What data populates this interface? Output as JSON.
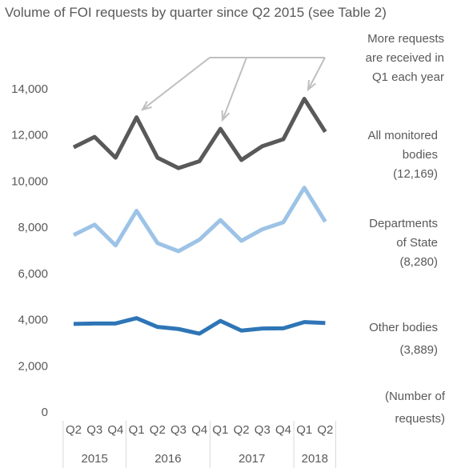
{
  "chart_data": {
    "type": "line",
    "title": "Volume of FOI requests by quarter since Q2 2015 (see Table 2)",
    "categories": [
      "Q2",
      "Q3",
      "Q4",
      "Q1",
      "Q2",
      "Q3",
      "Q4",
      "Q1",
      "Q2",
      "Q3",
      "Q4",
      "Q1",
      "Q2"
    ],
    "year_groups": [
      {
        "label": "2015",
        "span": 3
      },
      {
        "label": "2016",
        "span": 4
      },
      {
        "label": "2017",
        "span": 4
      },
      {
        "label": "2018",
        "span": 2
      }
    ],
    "series": [
      {
        "name_lines": [
          "All monitored",
          "bodies"
        ],
        "end_label": "(12,169)",
        "color": "#595959",
        "values": [
          11500,
          11950,
          11050,
          12800,
          11050,
          10600,
          10900,
          12300,
          10950,
          11550,
          11850,
          13600,
          12169
        ]
      },
      {
        "name_lines": [
          "Departments",
          "of State"
        ],
        "end_label": "(8,280)",
        "color": "#9dc3e6",
        "values": [
          7700,
          8150,
          7250,
          8750,
          7350,
          7000,
          7500,
          8350,
          7450,
          7950,
          8250,
          9750,
          8280
        ]
      },
      {
        "name_lines": [
          "Other bodies"
        ],
        "end_label": "(3,889)",
        "color": "#2e75b6",
        "values": [
          3850,
          3870,
          3870,
          4100,
          3720,
          3630,
          3430,
          3980,
          3560,
          3650,
          3660,
          3930,
          3889
        ]
      }
    ],
    "ylim": [
      0,
      14000
    ],
    "yticks": [
      0,
      {
        "value": 2000,
        "label": "2,000"
      },
      {
        "value": 4000,
        "label": "4,000"
      },
      {
        "value": 6000,
        "label": "6,000"
      },
      {
        "value": 8000,
        "label": "8,000"
      },
      {
        "value": 10000,
        "label": "10,000"
      },
      {
        "value": 12000,
        "label": "12,000"
      },
      {
        "value": 14000,
        "label": "14,000"
      }
    ],
    "annotation_lines": [
      "More requests",
      "are received in",
      "Q1 each year"
    ],
    "y_label_lines": [
      "(Number of",
      "requests)"
    ]
  }
}
